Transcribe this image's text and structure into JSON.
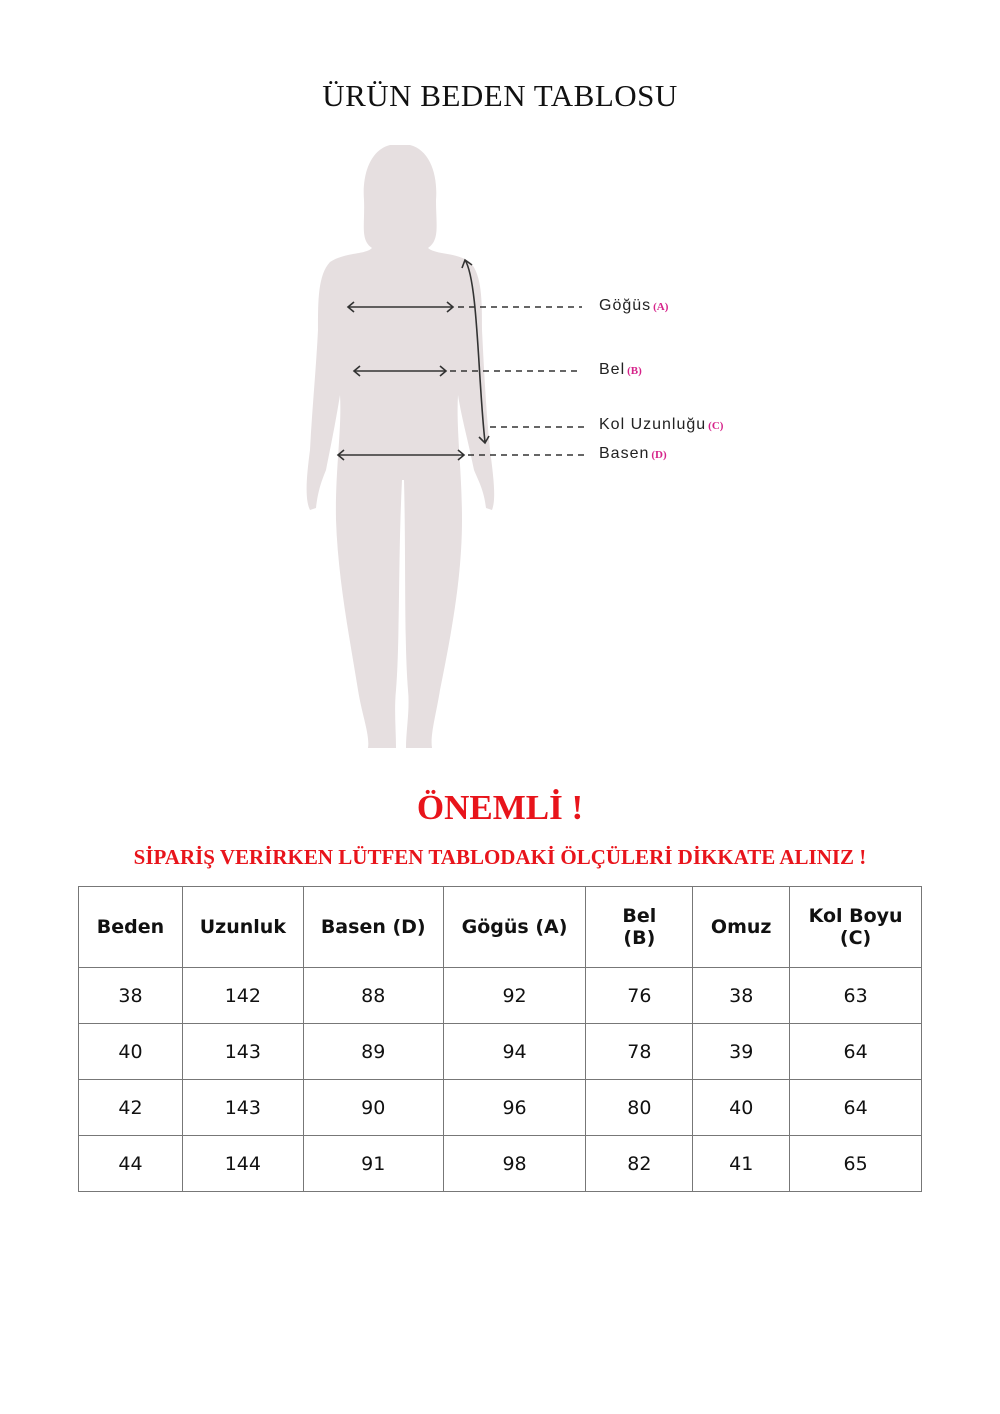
{
  "title": "ÜRÜN BEDEN TABLOSU",
  "diagram": {
    "labels": [
      {
        "text": "Göğüs",
        "tag": "(A)"
      },
      {
        "text": "Bel",
        "tag": "(B)"
      },
      {
        "text": "Kol Uzunluğu",
        "tag": "(C)"
      },
      {
        "text": "Basen",
        "tag": "(D)"
      }
    ],
    "silhouette_color": "#e6dfe0",
    "tag_color": "#d6238a"
  },
  "important": "ÖNEMLİ !",
  "notice": "SİPARİŞ VERİRKEN LÜTFEN TABLODAKİ ÖLÇÜLERİ DİKKATE ALINIZ !",
  "table": {
    "headers": [
      "Beden",
      "Uzunluk",
      "Basen (D)",
      "Gögüs (A)",
      "Bel\n(B)",
      "Omuz",
      "Kol Boyu\n(C)"
    ],
    "rows": [
      [
        "38",
        "142",
        "88",
        "92",
        "76",
        "38",
        "63"
      ],
      [
        "40",
        "143",
        "89",
        "94",
        "78",
        "39",
        "64"
      ],
      [
        "42",
        "143",
        "90",
        "96",
        "80",
        "40",
        "64"
      ],
      [
        "44",
        "144",
        "91",
        "98",
        "82",
        "41",
        "65"
      ]
    ]
  }
}
